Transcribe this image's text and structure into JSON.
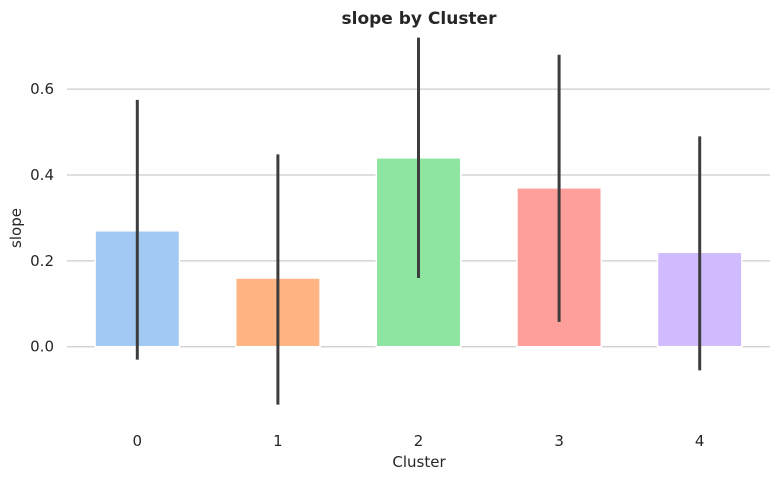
{
  "chart_data": {
    "type": "bar",
    "title": "slope by Cluster",
    "xlabel": "Cluster",
    "ylabel": "slope",
    "categories": [
      "0",
      "1",
      "2",
      "3",
      "4"
    ],
    "values": [
      0.27,
      0.16,
      0.44,
      0.37,
      0.22
    ],
    "error_bars": [
      [
        -0.03,
        0.575
      ],
      [
        -0.135,
        0.448
      ],
      [
        0.16,
        0.72
      ],
      [
        0.058,
        0.68
      ],
      [
        -0.055,
        0.49
      ]
    ],
    "colors": [
      "#a1c9f4",
      "#ffb482",
      "#8de5a1",
      "#ff9f9b",
      "#d0bbff"
    ],
    "error_bar_color": "#3d3d3d",
    "ylim": [
      -0.18,
      0.74
    ],
    "yticks": [
      0.0,
      0.2,
      0.4,
      0.6
    ],
    "ytick_labels": [
      "0.0",
      "0.2",
      "0.4",
      "0.6"
    ],
    "grid": "horizontal",
    "legend": "none"
  }
}
